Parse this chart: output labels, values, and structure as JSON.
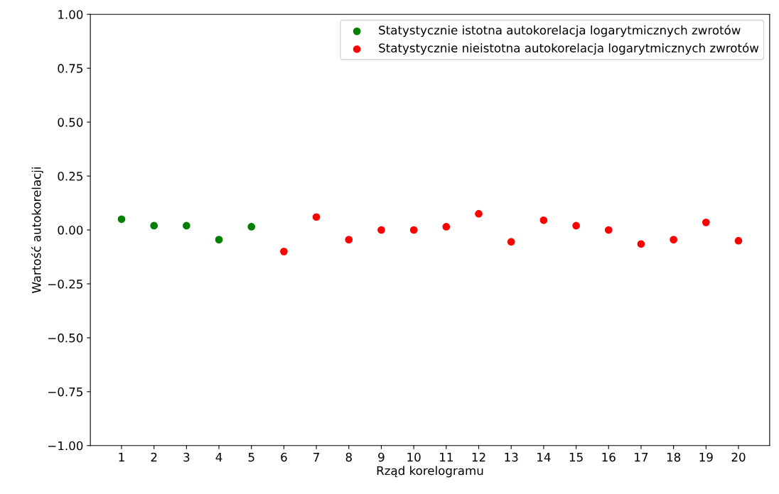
{
  "chart_data": {
    "type": "scatter",
    "xlabel": "Rząd korelogramu",
    "ylabel": "Wartość autokorelacji",
    "series": [
      {
        "name": "Statystycznie istotna autokorelacja logarytmicznych zwrotów",
        "color": "#008000",
        "x": [
          1,
          2,
          3,
          4,
          5
        ],
        "values": [
          0.05,
          0.02,
          0.02,
          -0.045,
          0.015
        ]
      },
      {
        "name": "Statystycznie nieistotna autokorelacja logarytmicznych zwrotów",
        "color": "#ff0000",
        "x": [
          6,
          7,
          8,
          9,
          10,
          11,
          12,
          13,
          14,
          15,
          16,
          17,
          18,
          19,
          20
        ],
        "values": [
          -0.1,
          0.06,
          -0.045,
          0.0,
          0.0,
          0.015,
          0.075,
          -0.055,
          0.045,
          0.02,
          0.0,
          -0.065,
          -0.045,
          0.035,
          -0.05
        ]
      }
    ],
    "xlim": [
      0.04,
      20.96
    ],
    "xticks": [
      1,
      2,
      3,
      4,
      5,
      6,
      7,
      8,
      9,
      10,
      11,
      12,
      13,
      14,
      15,
      16,
      17,
      18,
      19,
      20
    ],
    "ylim": [
      -1.0,
      1.0
    ],
    "yticks": [
      {
        "value": -1.0,
        "label": "−1.00"
      },
      {
        "value": -0.75,
        "label": "−0.75"
      },
      {
        "value": -0.5,
        "label": "−0.50"
      },
      {
        "value": -0.25,
        "label": "−0.25"
      },
      {
        "value": 0.0,
        "label": "0.00"
      },
      {
        "value": 0.25,
        "label": "0.25"
      },
      {
        "value": 0.5,
        "label": "0.50"
      },
      {
        "value": 0.75,
        "label": "0.75"
      },
      {
        "value": 1.0,
        "label": "1.00"
      }
    ],
    "grid": false,
    "legend": "top right",
    "marker": "circle"
  }
}
